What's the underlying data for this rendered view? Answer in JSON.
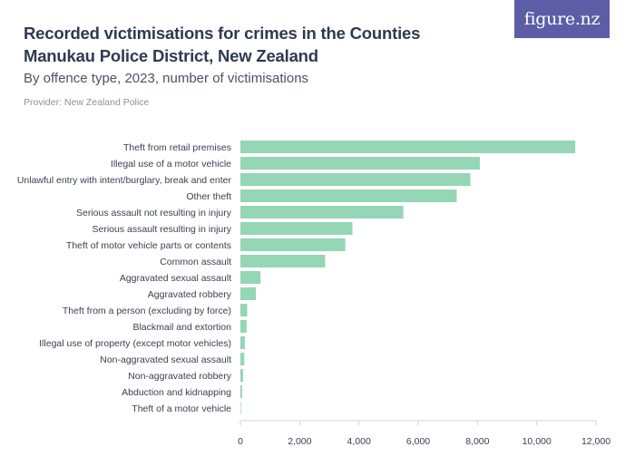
{
  "header": {
    "title": "Recorded victimisations for crimes in the Counties Manukau Police District, New Zealand",
    "subtitle": "By offence type, 2023, number of victimisations",
    "provider": "Provider: New Zealand Police"
  },
  "logo": {
    "text": "figure.nz",
    "color": "#5b5ea6"
  },
  "chart_data": {
    "type": "bar",
    "orientation": "horizontal",
    "categories": [
      "Theft from retail premises",
      "Illegal use of a motor vehicle",
      "Unlawful entry with intent/burglary, break and enter",
      "Other theft",
      "Serious assault not resulting in injury",
      "Serious assault resulting in injury",
      "Theft of motor vehicle parts or contents",
      "Common assault",
      "Aggravated sexual assault",
      "Aggravated robbery",
      "Theft from a person (excluding by force)",
      "Blackmail and extortion",
      "Illegal use of property (except motor vehicles)",
      "Non-aggravated sexual assault",
      "Non-aggravated robbery",
      "Abduction and kidnapping",
      "Theft of a motor vehicle"
    ],
    "values": [
      11300,
      8080,
      7760,
      7300,
      5500,
      3780,
      3540,
      2860,
      680,
      520,
      230,
      210,
      150,
      130,
      90,
      60,
      20
    ],
    "xlim": [
      0,
      12000
    ],
    "xticks": [
      0,
      2000,
      4000,
      6000,
      8000,
      10000,
      12000
    ],
    "xtick_labels": [
      "0",
      "2,000",
      "4,000",
      "6,000",
      "8,000",
      "10,000",
      "12,000"
    ],
    "bar_color": "#94d6b6",
    "axis_color": "#cfd3da",
    "grid": false
  }
}
